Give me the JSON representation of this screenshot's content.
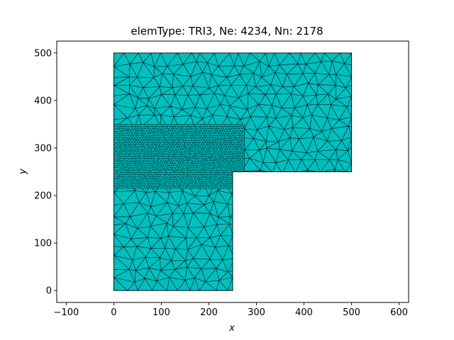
{
  "chart_data": {
    "type": "mesh",
    "title": "elemType: TRI3, Ne: 4234, Nn: 2178",
    "xlabel": "x",
    "ylabel": "y",
    "xlim": [
      -120,
      620
    ],
    "ylim": [
      -25,
      525
    ],
    "xticks": [
      -100,
      0,
      100,
      200,
      300,
      400,
      500,
      600
    ],
    "yticks": [
      0,
      100,
      200,
      300,
      400,
      500
    ],
    "grid": false,
    "fill_color": "#00bfbf",
    "edge_color": "#000000",
    "domain_polygon": [
      [
        0,
        0
      ],
      [
        250,
        0
      ],
      [
        250,
        250
      ],
      [
        500,
        250
      ],
      [
        500,
        500
      ],
      [
        0,
        500
      ]
    ],
    "refined_region": {
      "x": [
        0,
        275
      ],
      "y": [
        215,
        350
      ]
    },
    "mesh": {
      "element_type": "TRI3",
      "num_elements": 4234,
      "num_nodes": 2178
    }
  }
}
